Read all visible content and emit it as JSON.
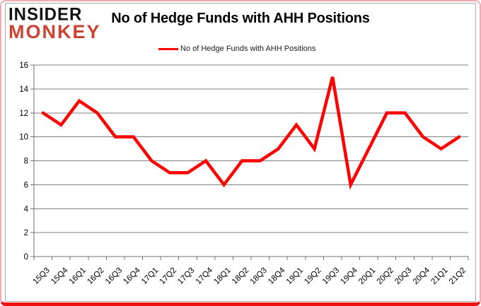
{
  "logo": {
    "line1": "INSIDER",
    "line2": "MONKEY"
  },
  "title": "No of Hedge Funds with AHH Positions",
  "legend": {
    "label": "No of Hedge Funds with AHH Positions"
  },
  "chart_data": {
    "type": "line",
    "title": "No of Hedge Funds with AHH Positions",
    "categories": [
      "15Q3",
      "15Q4",
      "16Q1",
      "16Q2",
      "16Q3",
      "16Q4",
      "17Q1",
      "17Q2",
      "17Q3",
      "17Q4",
      "18Q1",
      "18Q2",
      "18Q3",
      "18Q4",
      "19Q1",
      "19Q2",
      "19Q3",
      "19Q4",
      "20Q1",
      "20Q2",
      "20Q3",
      "20Q4",
      "21Q1",
      "21Q2"
    ],
    "series": [
      {
        "name": "No of Hedge Funds with AHH Positions",
        "color": "#ff0000",
        "values": [
          12,
          11,
          13,
          12,
          10,
          10,
          8,
          7,
          7,
          8,
          6,
          8,
          8,
          9,
          11,
          9,
          15,
          6,
          9,
          12,
          12,
          10,
          9,
          10
        ]
      }
    ],
    "xlabel": "",
    "ylabel": "",
    "ylim": [
      0,
      16
    ],
    "ytick_step": 2,
    "grid": true,
    "legend_position": "top-center"
  },
  "colors": {
    "line": "#ff0000",
    "grid": "#808080",
    "axis": "#707070",
    "tick_label": "#000000",
    "logo_black": "#111111",
    "logo_red": "#cb4332",
    "card_border": "#f2aeae",
    "card_border_bottom": "#ee1111"
  }
}
